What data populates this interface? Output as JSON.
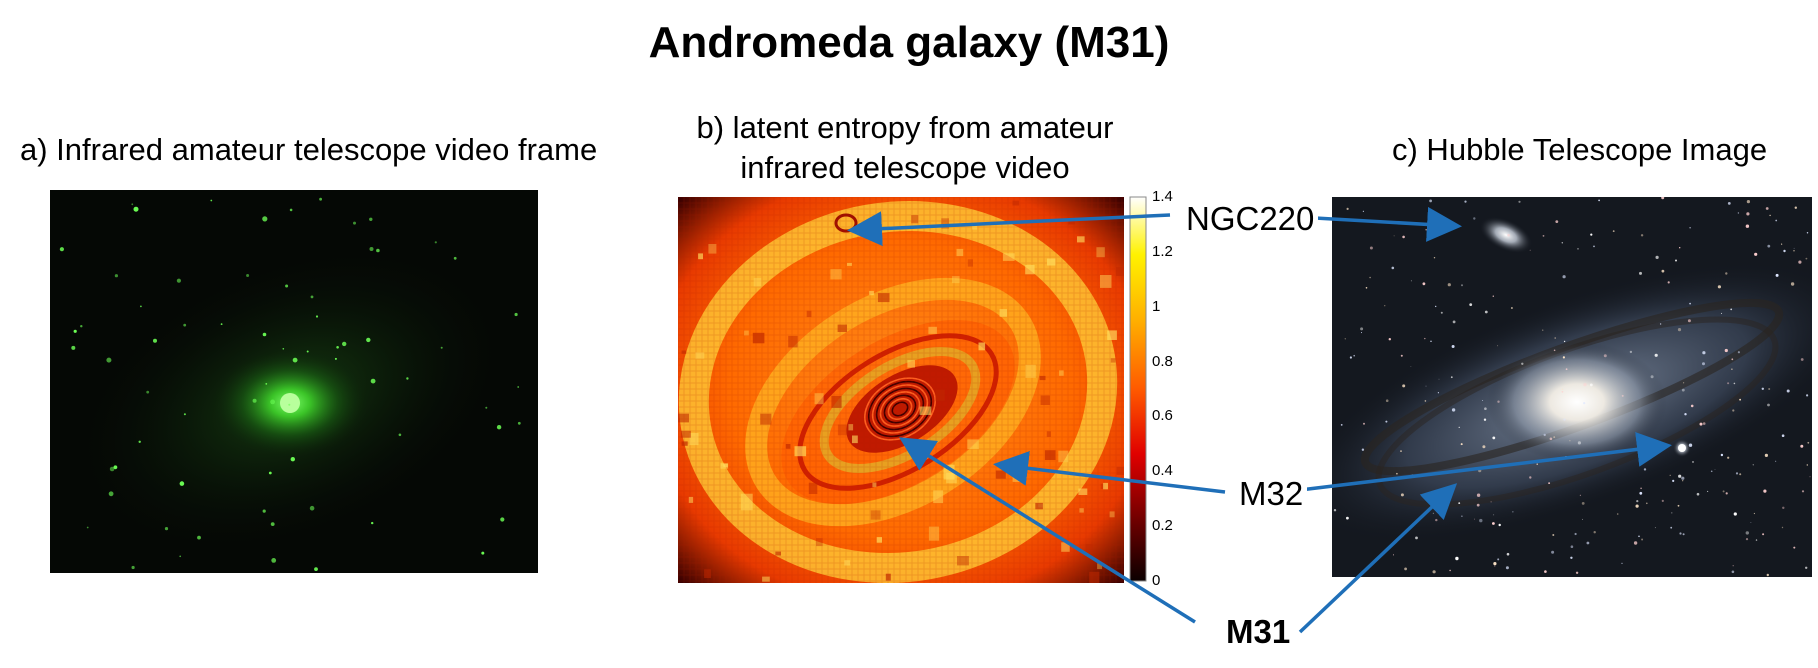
{
  "figure": {
    "title": "Andromeda galaxy (M31)"
  },
  "panels": {
    "a": {
      "label": "a) Infrared amateur telescope video frame"
    },
    "b": {
      "label_line1": "b) latent entropy from amateur",
      "label_line2": "infrared telescope video"
    },
    "c": {
      "label": "c) Hubble Telescope Image"
    }
  },
  "colorbar": {
    "ticks": [
      "1.4",
      "1.2",
      "1",
      "0.8",
      "0.6",
      "0.4",
      "0.2",
      "0"
    ],
    "range": [
      0,
      1.4
    ],
    "colormap": "hot"
  },
  "callouts": {
    "ngc220": "NGC220",
    "m32": "M32",
    "m31": "M31"
  },
  "colors": {
    "arrow": "#1f6fb8",
    "background": "#ffffff"
  }
}
